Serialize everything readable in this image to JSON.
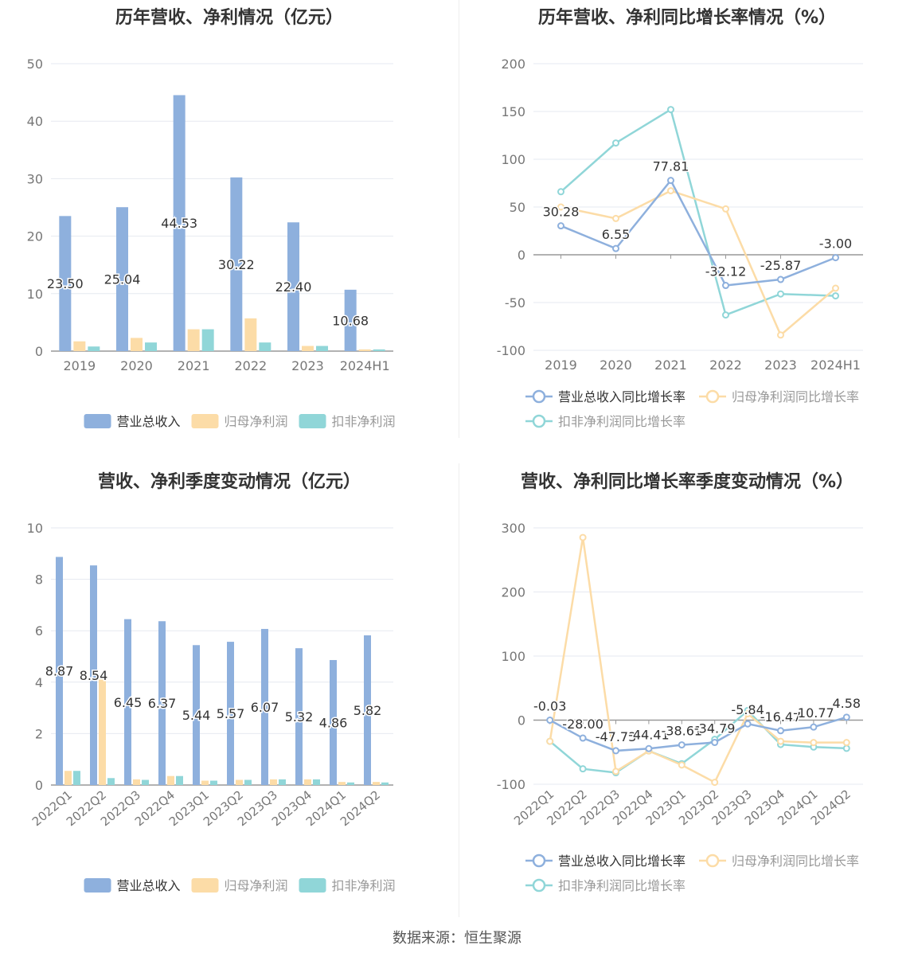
{
  "footer": {
    "source": "数据来源：恒生聚源"
  },
  "colors": {
    "revenue": "#8eb0dd",
    "net_profit": "#fcdca7",
    "deducted_profit": "#90d6d8",
    "grid": "#e6e9f0",
    "axis_text": "#777777"
  },
  "chart_data": [
    {
      "id": "annual_values",
      "type": "bar",
      "title": "历年营收、净利情况（亿元）",
      "categories": [
        "2019",
        "2020",
        "2021",
        "2022",
        "2023",
        "2024H1"
      ],
      "ylim": [
        0,
        50
      ],
      "yticks": [
        0,
        10,
        20,
        30,
        40,
        50
      ],
      "series": [
        {
          "name": "营业总收入",
          "values": [
            23.5,
            25.04,
            44.53,
            30.22,
            22.4,
            10.68
          ],
          "labels": [
            "23.50",
            "25.04",
            "44.53",
            "30.22",
            "22.40",
            "10.68"
          ]
        },
        {
          "name": "归母净利润",
          "values": [
            1.7,
            2.3,
            3.8,
            5.7,
            0.9,
            0.3
          ]
        },
        {
          "name": "扣非净利润",
          "values": [
            0.8,
            1.5,
            3.8,
            1.5,
            0.9,
            0.3
          ]
        }
      ],
      "legend": "bottom"
    },
    {
      "id": "annual_growth",
      "type": "line",
      "title": "历年营收、净利同比增长率情况（%）",
      "categories": [
        "2019",
        "2020",
        "2021",
        "2022",
        "2023",
        "2024H1"
      ],
      "ylim": [
        -100,
        200
      ],
      "yticks": [
        -100,
        -50,
        0,
        50,
        100,
        150,
        200
      ],
      "series": [
        {
          "name": "营业总收入同比增长率",
          "values": [
            30.28,
            6.55,
            77.81,
            -32.12,
            -25.87,
            -3.0
          ],
          "labels": [
            "30.28",
            "6.55",
            "77.81",
            "-32.12",
            "-25.87",
            "-3.00"
          ]
        },
        {
          "name": "归母净利润同比增长率",
          "values": [
            50,
            38,
            67,
            48,
            -84,
            -35
          ]
        },
        {
          "name": "扣非净利润同比增长率",
          "values": [
            66,
            117,
            152,
            -63,
            -41,
            -43
          ]
        }
      ],
      "legend": "bottom"
    },
    {
      "id": "quarterly_values",
      "type": "bar",
      "title": "营收、净利季度变动情况（亿元）",
      "categories": [
        "2022Q1",
        "2022Q2",
        "2022Q3",
        "2022Q4",
        "2023Q1",
        "2023Q2",
        "2023Q3",
        "2023Q4",
        "2024Q1",
        "2024Q2"
      ],
      "ylim": [
        0,
        10
      ],
      "yticks": [
        0,
        2,
        4,
        6,
        8,
        10
      ],
      "series": [
        {
          "name": "营业总收入",
          "values": [
            8.87,
            8.54,
            6.45,
            6.37,
            5.44,
            5.57,
            6.07,
            5.32,
            4.86,
            5.82
          ],
          "labels": [
            "8.87",
            "8.54",
            "6.45",
            "6.37",
            "5.44",
            "5.57",
            "6.07",
            "5.32",
            "4.86",
            "5.82"
          ]
        },
        {
          "name": "归母净利润",
          "values": [
            0.55,
            4.1,
            0.22,
            0.35,
            0.17,
            0.2,
            0.22,
            0.22,
            0.12,
            0.12
          ]
        },
        {
          "name": "扣非净利润",
          "values": [
            0.55,
            0.27,
            0.2,
            0.35,
            0.17,
            0.2,
            0.22,
            0.22,
            0.1,
            0.1
          ]
        }
      ],
      "legend": "bottom"
    },
    {
      "id": "quarterly_growth",
      "type": "line",
      "title": "营收、净利同比增长率季度变动情况（%）",
      "categories": [
        "2022Q1",
        "2022Q2",
        "2022Q3",
        "2022Q4",
        "2023Q1",
        "2023Q2",
        "2023Q3",
        "2023Q4",
        "2024Q1",
        "2024Q2"
      ],
      "ylim": [
        -100,
        300
      ],
      "yticks": [
        -100,
        0,
        100,
        200,
        300
      ],
      "series": [
        {
          "name": "营业总收入同比增长率",
          "values": [
            -0.03,
            -28.0,
            -47.73,
            -44.41,
            -38.61,
            -34.79,
            -5.84,
            -16.47,
            -10.77,
            4.58
          ],
          "labels": [
            "-0.03",
            "-28.00",
            "-47.73",
            "-44.41",
            "-38.61",
            "-34.79",
            "-5.84",
            "-16.47",
            "-10.77",
            "4.58"
          ]
        },
        {
          "name": "归母净利润同比增长率",
          "values": [
            -33,
            285,
            -80,
            -48,
            -70,
            -97,
            10,
            -33,
            -35,
            -35
          ]
        },
        {
          "name": "扣非净利润同比增长率",
          "values": [
            -33,
            -76,
            -82,
            -48,
            -68,
            -30,
            15,
            -38,
            -42,
            -44
          ]
        }
      ],
      "legend": "bottom"
    }
  ]
}
